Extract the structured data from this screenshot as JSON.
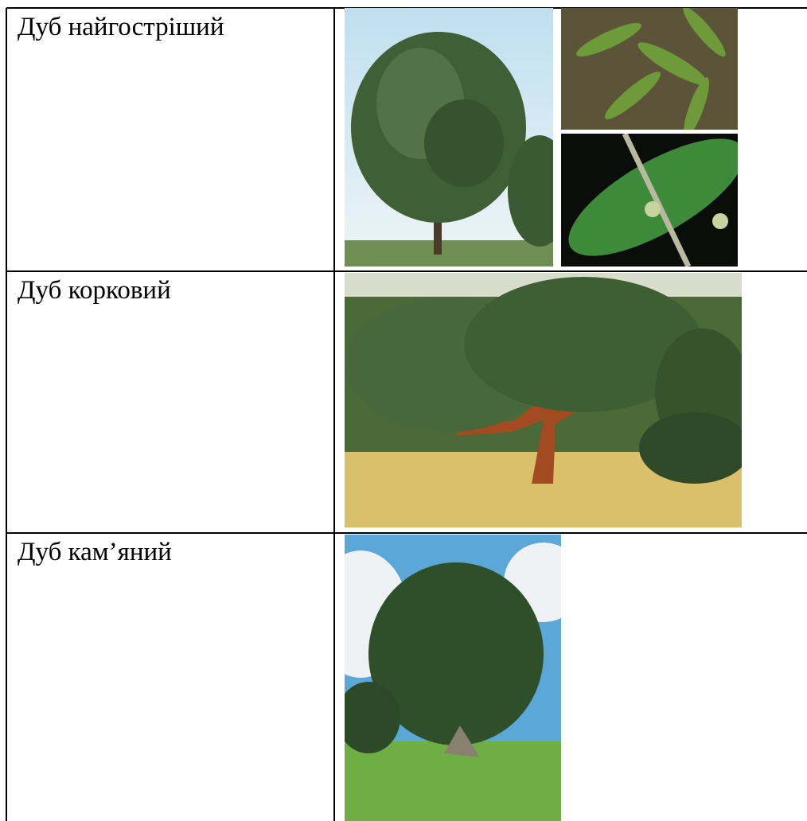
{
  "table": {
    "rows": [
      [
        "Дуб найгостріший"
      ],
      [
        "Дуб корковий"
      ],
      [
        "Дуб кам’яний"
      ]
    ]
  }
}
